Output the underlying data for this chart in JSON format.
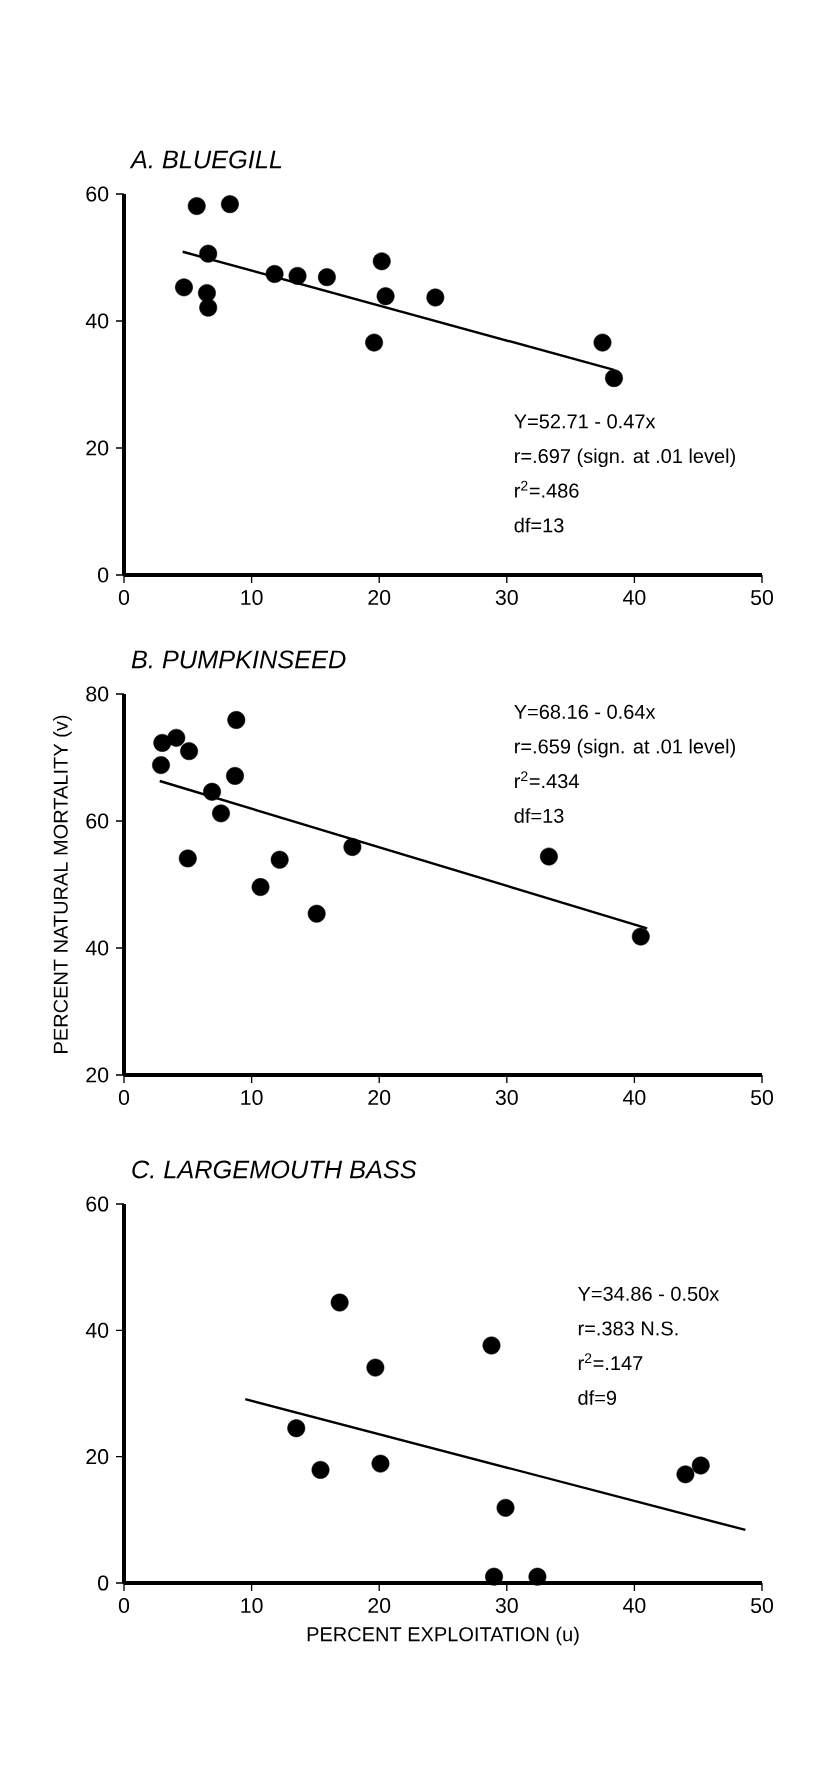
{
  "chart_data": [
    {
      "type": "scatter",
      "title": "A. BLUEGILL",
      "xlim": [
        0,
        50
      ],
      "xticks": [
        0,
        10,
        20,
        30,
        40,
        50
      ],
      "ylim": [
        0,
        60
      ],
      "yticks": [
        0,
        20,
        40,
        60
      ],
      "series": [
        {
          "marker": "circle",
          "color": "#000000",
          "x": [
            5.7,
            8.3,
            6.6,
            4.7,
            6.5,
            6.6,
            11.8,
            13.6,
            15.9,
            20.2,
            20.5,
            24.4,
            19.6,
            37.5,
            38.4
          ],
          "values": [
            58.1,
            58.4,
            50.6,
            45.3,
            44.4,
            42.1,
            47.4,
            47.1,
            46.9,
            49.4,
            43.9,
            43.7,
            36.6,
            36.6,
            31.0
          ]
        },
        {
          "type": "line",
          "color": "#000000",
          "x": [
            4.6,
            38.4
          ],
          "values": [
            50.9,
            32.3
          ]
        }
      ],
      "annotations": [
        "Y=52.71 - 0.47x",
        "r=.697 (sign. at .01 level)",
        "r$^{2}$=.486",
        "df=13"
      ]
    },
    {
      "type": "scatter",
      "title": "B. PUMPKINSEED",
      "ylabel": "PERCENT NATURAL MORTALITY (v)",
      "xlim": [
        0,
        50
      ],
      "xticks": [
        0,
        10,
        20,
        30,
        40,
        50
      ],
      "ylim": [
        20,
        80
      ],
      "yticks": [
        20,
        40,
        60,
        80
      ],
      "series": [
        {
          "marker": "circle",
          "color": "#000000",
          "x": [
            2.9,
            3.0,
            4.1,
            5.1,
            5.0,
            8.8,
            8.7,
            6.9,
            7.6,
            10.7,
            12.2,
            15.1,
            17.9,
            33.3,
            40.5
          ],
          "values": [
            68.8,
            72.3,
            73.1,
            71.0,
            54.1,
            75.9,
            67.1,
            64.6,
            61.2,
            49.6,
            53.9,
            45.4,
            55.9,
            54.4,
            41.8
          ]
        },
        {
          "type": "line",
          "color": "#000000",
          "x": [
            2.8,
            41.0
          ],
          "values": [
            66.3,
            43.1
          ]
        }
      ],
      "annotations": [
        "Y=68.16 - 0.64x",
        "r=.659 (sign. at .01 level)",
        "r$^{2}$=.434",
        "df=13"
      ]
    },
    {
      "type": "scatter",
      "title": "C. LARGEMOUTH BASS",
      "xlabel": "PERCENT EXPLOITATION (u)",
      "xlim": [
        0,
        50
      ],
      "xticks": [
        0,
        10,
        20,
        30,
        40,
        50
      ],
      "ylim": [
        0,
        60
      ],
      "yticks": [
        0,
        20,
        40,
        60
      ],
      "series": [
        {
          "marker": "circle",
          "color": "#000000",
          "x": [
            16.9,
            19.7,
            28.8,
            13.5,
            15.4,
            20.1,
            29.9,
            44.0,
            45.2,
            29.0,
            32.4
          ],
          "values": [
            44.4,
            34.1,
            37.6,
            24.5,
            17.9,
            18.9,
            11.9,
            17.2,
            18.6,
            1.0,
            1.0
          ]
        },
        {
          "type": "line",
          "color": "#000000",
          "x": [
            9.5,
            48.7
          ],
          "values": [
            29.1,
            8.4
          ]
        }
      ],
      "annotations": [
        "Y=34.86 - 0.50x",
        "r=.383 N.S.",
        "r$^{2}$=.147",
        "df=9"
      ]
    }
  ]
}
